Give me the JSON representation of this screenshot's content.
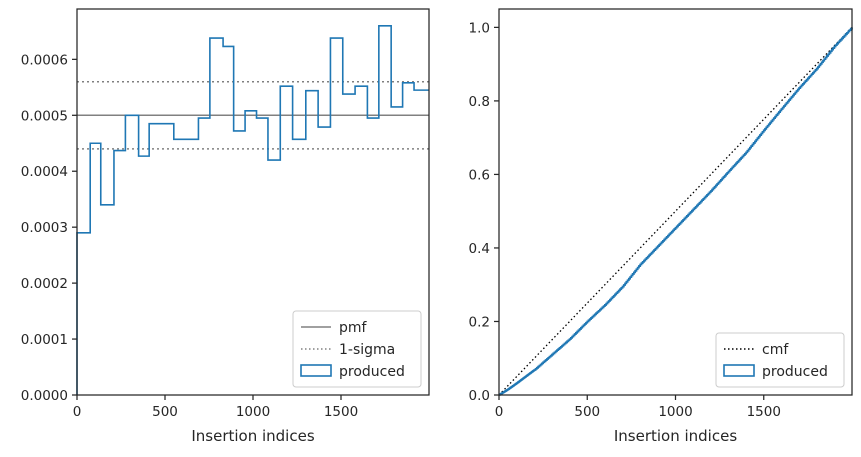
{
  "chart_data": [
    {
      "type": "step",
      "xlabel": "Insertion indices",
      "ylabel": "",
      "xlim": [
        0,
        2000
      ],
      "ylim": [
        0,
        0.00069
      ],
      "xticks": [
        0,
        500,
        1000,
        1500
      ],
      "xtick_labels": [
        "0",
        "500",
        "1000",
        "1500"
      ],
      "yticks": [
        0,
        0.0001,
        0.0002,
        0.0003,
        0.0004,
        0.0005,
        0.0006
      ],
      "ytick_labels": [
        "0.0000",
        "0.0001",
        "0.0002",
        "0.0003",
        "0.0004",
        "0.0005",
        "0.0006"
      ],
      "grid": false,
      "legend_position": "bottom-right",
      "reference_lines": [
        {
          "name": "pmf",
          "style": "solid",
          "color": "#808080",
          "y": 0.0005
        },
        {
          "name": "1-sigma",
          "style": "dotted",
          "color": "#808080",
          "y": [
            0.00044,
            0.00056
          ]
        }
      ],
      "series": [
        {
          "name": "produced",
          "color": "#1f77b4",
          "bin_edges": [
            0,
            75,
            135,
            210,
            275,
            350,
            410,
            550,
            690,
            755,
            830,
            890,
            955,
            1020,
            1085,
            1155,
            1225,
            1300,
            1370,
            1440,
            1510,
            1580,
            1650,
            1715,
            1785,
            1850,
            1915,
            2000
          ],
          "values": [
            0.00029,
            0.00045,
            0.00034,
            0.000437,
            0.0005,
            0.000427,
            0.000485,
            0.000457,
            0.000495,
            0.000638,
            0.000623,
            0.000472,
            0.000508,
            0.000495,
            0.00042,
            0.000552,
            0.000457,
            0.000544,
            0.000479,
            0.000638,
            0.000538,
            0.000552,
            0.000495,
            0.00066,
            0.000515,
            0.000558,
            0.000545
          ]
        }
      ]
    },
    {
      "type": "line",
      "xlabel": "Insertion indices",
      "ylabel": "",
      "xlim": [
        0,
        2000
      ],
      "ylim": [
        0,
        1.05
      ],
      "xticks": [
        0,
        500,
        1000,
        1500
      ],
      "xtick_labels": [
        "0",
        "500",
        "1000",
        "1500"
      ],
      "yticks": [
        0,
        0.2,
        0.4,
        0.6,
        0.8,
        1.0
      ],
      "ytick_labels": [
        "0.0",
        "0.2",
        "0.4",
        "0.6",
        "0.8",
        "1.0"
      ],
      "grid": false,
      "legend_position": "bottom-right",
      "series": [
        {
          "name": "cmf",
          "style": "dotted",
          "color": "#000000",
          "x": [
            0,
            2000
          ],
          "y": [
            0,
            1.0
          ]
        },
        {
          "name": "produced",
          "style": "step",
          "color": "#1f77b4",
          "x": [
            0,
            50,
            100,
            150,
            200,
            300,
            400,
            500,
            600,
            700,
            800,
            900,
            1000,
            1100,
            1200,
            1300,
            1400,
            1500,
            1600,
            1700,
            1800,
            1900,
            2000
          ],
          "y": [
            0,
            0.015,
            0.032,
            0.05,
            0.068,
            0.11,
            0.152,
            0.2,
            0.245,
            0.295,
            0.355,
            0.405,
            0.455,
            0.505,
            0.555,
            0.608,
            0.66,
            0.72,
            0.778,
            0.835,
            0.888,
            0.948,
            1.0
          ]
        }
      ]
    }
  ]
}
